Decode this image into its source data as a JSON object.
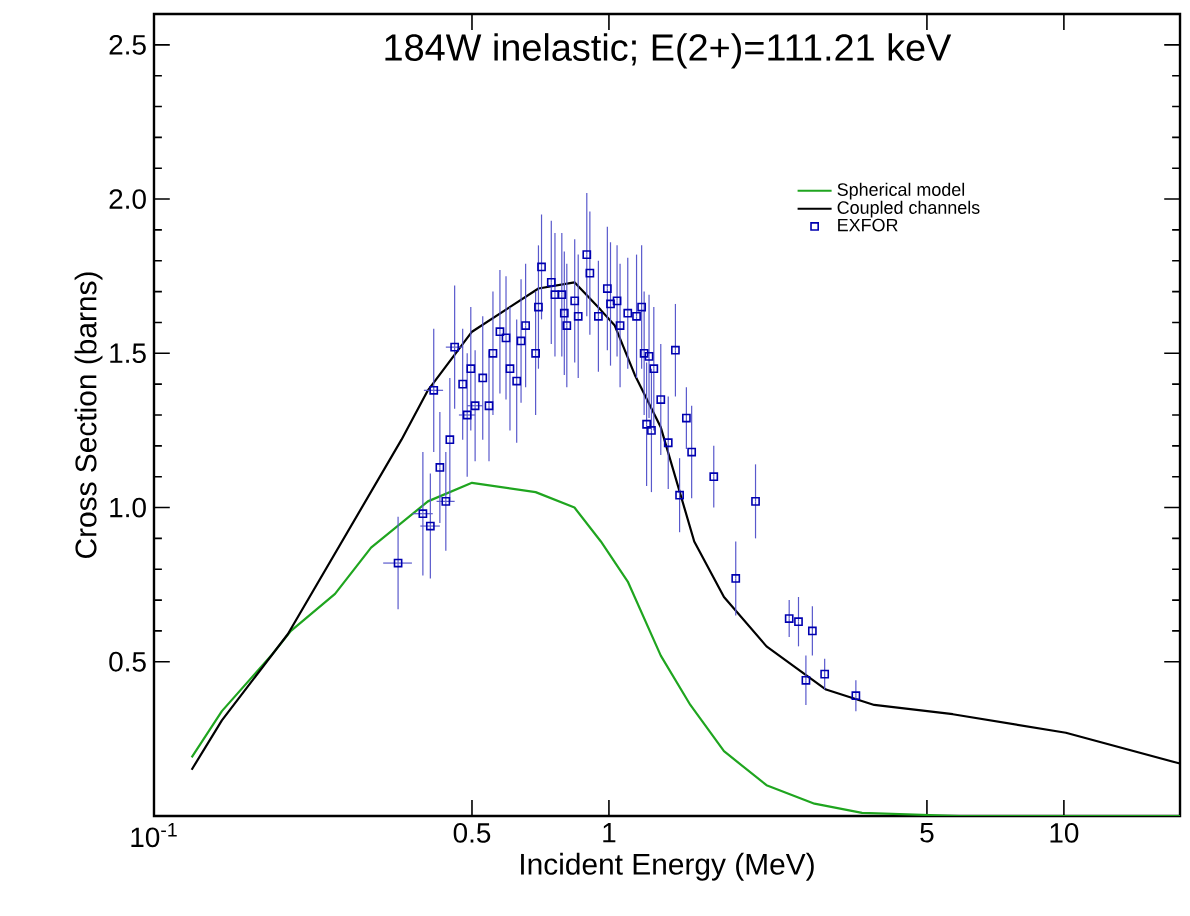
{
  "chart_data": {
    "type": "line",
    "title": "184W inelastic; E(2+)=111.21 keV",
    "xlabel": "Incident Energy (MeV)",
    "ylabel": "Cross Section (barns)",
    "log": "x",
    "xlim": [
      0.1,
      18
    ],
    "ylim": [
      0,
      2.6
    ],
    "xticks": [
      {
        "value": 0.1,
        "label": "10$^{-1}$"
      },
      0.5,
      1,
      5,
      10
    ],
    "yticks": [
      {
        "value": 0.5,
        "label": "0.5"
      },
      {
        "value": 1.0,
        "label": "1.0"
      },
      {
        "value": 1.5,
        "label": "1.5"
      },
      {
        "value": 2.0,
        "label": "2.0"
      },
      {
        "value": 2.5,
        "label": "2.5"
      }
    ],
    "legend": "top right",
    "series": [
      {
        "name": "Spherical model",
        "color": "#1fa51f",
        "marker": "none",
        "x": [
          0.121,
          0.141,
          0.181,
          0.2,
          0.25,
          0.3,
          0.4,
          0.5,
          0.69,
          0.84,
          0.96,
          1.1,
          1.3,
          1.51,
          1.79,
          2.22,
          2.83,
          3.6,
          5.9,
          18
        ],
        "values": [
          0.19,
          0.34,
          0.52,
          0.6,
          0.72,
          0.87,
          1.02,
          1.08,
          1.05,
          1.0,
          0.89,
          0.76,
          0.52,
          0.36,
          0.21,
          0.1,
          0.04,
          0.01,
          0,
          0
        ]
      },
      {
        "name": "Coupled channels",
        "color": "#000000",
        "marker": "none",
        "x": [
          0.121,
          0.141,
          0.197,
          0.35,
          0.4,
          0.5,
          0.7,
          0.84,
          0.96,
          1.03,
          1.14,
          1.3,
          1.54,
          1.79,
          2.22,
          3.0,
          3.83,
          5.7,
          10.1,
          18
        ],
        "values": [
          0.15,
          0.31,
          0.59,
          1.22,
          1.38,
          1.57,
          1.71,
          1.73,
          1.64,
          1.59,
          1.43,
          1.26,
          0.89,
          0.71,
          0.55,
          0.41,
          0.36,
          0.33,
          0.27,
          0.17
        ]
      },
      {
        "name": "EXFOR",
        "type": "scatter",
        "color": "#0000b0",
        "marker": "square",
        "x": [
          0.344,
          0.39,
          0.405,
          0.412,
          0.425,
          0.438,
          0.447,
          0.458,
          0.477,
          0.488,
          0.497,
          0.508,
          0.528,
          0.545,
          0.556,
          0.576,
          0.594,
          0.606,
          0.627,
          0.641,
          0.656,
          0.69,
          0.7,
          0.711,
          0.747,
          0.761,
          0.788,
          0.798,
          0.808,
          0.841,
          0.856,
          0.894,
          0.908,
          0.948,
          0.992,
          1.008,
          1.042,
          1.058,
          1.1,
          1.15,
          1.18,
          1.195,
          1.225,
          1.255,
          1.3,
          1.21,
          1.24,
          1.35,
          1.4,
          1.48,
          1.52,
          1.43,
          1.7,
          1.9,
          2.1,
          2.49,
          2.61,
          2.8,
          2.71,
          2.98,
          3.49
        ],
        "values": [
          0.82,
          0.98,
          0.94,
          1.38,
          1.13,
          1.02,
          1.22,
          1.52,
          1.4,
          1.3,
          1.45,
          1.33,
          1.42,
          1.33,
          1.5,
          1.57,
          1.55,
          1.45,
          1.41,
          1.54,
          1.59,
          1.5,
          1.65,
          1.78,
          1.73,
          1.69,
          1.69,
          1.63,
          1.59,
          1.67,
          1.62,
          1.82,
          1.76,
          1.62,
          1.71,
          1.66,
          1.67,
          1.59,
          1.63,
          1.62,
          1.65,
          1.5,
          1.49,
          1.45,
          1.35,
          1.27,
          1.25,
          1.21,
          1.51,
          1.29,
          1.18,
          1.04,
          1.1,
          0.77,
          1.02,
          0.64,
          0.63,
          0.6,
          0.44,
          0.46,
          0.39
        ],
        "errors": [
          0.15,
          0.2,
          0.17,
          0.2,
          0.18,
          0.16,
          0.2,
          0.2,
          0.18,
          0.2,
          0.2,
          0.18,
          0.2,
          0.18,
          0.2,
          0.2,
          0.2,
          0.2,
          0.2,
          0.2,
          0.2,
          0.2,
          0.2,
          0.17,
          0.2,
          0.2,
          0.2,
          0.2,
          0.2,
          0.2,
          0.2,
          0.2,
          0.2,
          0.18,
          0.2,
          0.2,
          0.18,
          0.2,
          0.18,
          0.2,
          0.2,
          0.2,
          0.2,
          0.2,
          0.18,
          0.2,
          0.2,
          0.15,
          0.15,
          0.1,
          0.15,
          0.12,
          0.1,
          0.12,
          0.12,
          0.06,
          0.08,
          0.08,
          0.08,
          0.05,
          0.05
        ],
        "xerrors": [
          0.025,
          0.02,
          0.02,
          0.02,
          null,
          0.02,
          null,
          0.02,
          null,
          0.02,
          null,
          0.02,
          null,
          null,
          null,
          null,
          null,
          null,
          null,
          null,
          null,
          null,
          null,
          null,
          null,
          null,
          null,
          null,
          null,
          null,
          null,
          null,
          null,
          null,
          null,
          null,
          null,
          null,
          null,
          null,
          null,
          null,
          null,
          null,
          null,
          null,
          null,
          null,
          null,
          null,
          null,
          null,
          null,
          null,
          null,
          null,
          null,
          null,
          null,
          null,
          null
        ]
      }
    ]
  }
}
